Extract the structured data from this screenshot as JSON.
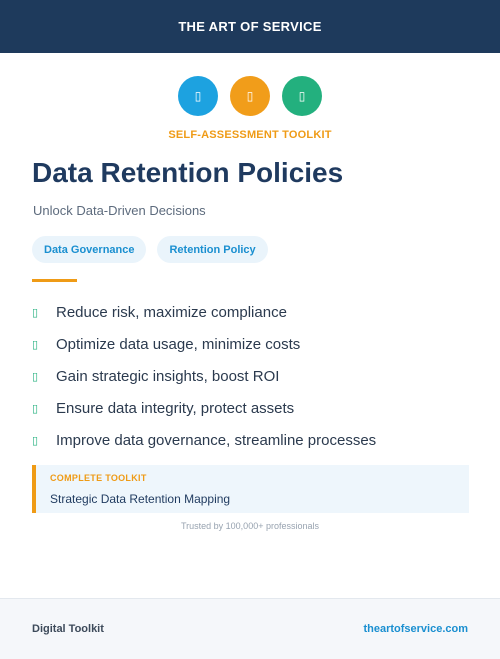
{
  "header": {
    "brand": "THE ART OF SERVICE"
  },
  "icons": [
    {
      "name": "blue-badge-icon",
      "glyph": "▯",
      "color": "#1da2e0"
    },
    {
      "name": "orange-badge-icon",
      "glyph": "▯",
      "color": "#f19d1a"
    },
    {
      "name": "green-badge-icon",
      "glyph": "▯",
      "color": "#23b07e"
    }
  ],
  "kicker": "SELF-ASSESSMENT TOOLKIT",
  "title": "Data Retention Policies",
  "subtitle": "Unlock Data-Driven Decisions",
  "tags": [
    "Data Governance",
    "Retention Policy"
  ],
  "benefits": [
    {
      "icon": "▯",
      "text": "Reduce risk, maximize compliance"
    },
    {
      "icon": "▯",
      "text": "Optimize data usage, minimize costs"
    },
    {
      "icon": "▯",
      "text": "Gain strategic insights, boost ROI"
    },
    {
      "icon": "▯",
      "text": "Ensure data integrity, protect assets"
    },
    {
      "icon": "▯",
      "text": "Improve data governance, streamline processes"
    }
  ],
  "callout": {
    "label": "COMPLETE TOOLKIT",
    "text": "Strategic Data Retention Mapping"
  },
  "trust": "Trusted by 100,000+ professionals",
  "footer": {
    "left": "Digital Toolkit",
    "right": "theartofservice.com"
  },
  "colors": {
    "header_bg": "#1e3a5c",
    "accent_orange": "#ef9b16",
    "accent_blue": "#1a8fd0",
    "accent_green": "#23b07e"
  }
}
